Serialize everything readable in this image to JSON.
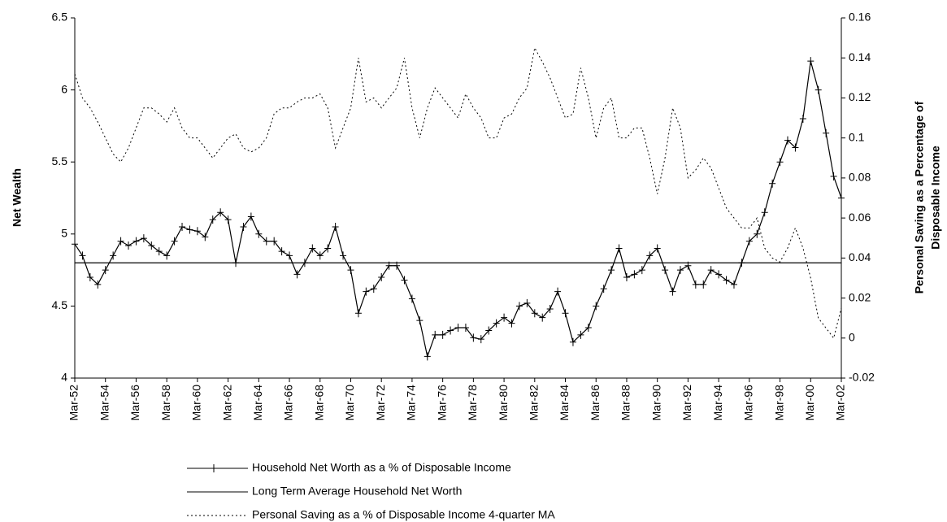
{
  "chart_data": {
    "type": "line",
    "y_label": "Net Wealth",
    "y2_label": [
      "Personal Saving as a Percentage of",
      "Disposable Income"
    ],
    "categories": [
      "Mar-52",
      null,
      null,
      null,
      "Mar-54",
      null,
      null,
      null,
      "Mar-56",
      null,
      null,
      null,
      "Mar-58",
      null,
      null,
      null,
      "Mar-60",
      null,
      null,
      null,
      "Mar-62",
      null,
      null,
      null,
      "Mar-64",
      null,
      null,
      null,
      "Mar-66",
      null,
      null,
      null,
      "Mar-68",
      null,
      null,
      null,
      "Mar-70",
      null,
      null,
      null,
      "Mar-72",
      null,
      null,
      null,
      "Mar-74",
      null,
      null,
      null,
      "Mar-76",
      null,
      null,
      null,
      "Mar-78",
      null,
      null,
      null,
      "Mar-80",
      null,
      null,
      null,
      "Mar-82",
      null,
      null,
      null,
      "Mar-84",
      null,
      null,
      null,
      "Mar-86",
      null,
      null,
      null,
      "Mar-88",
      null,
      null,
      null,
      "Mar-90",
      null,
      null,
      null,
      "Mar-92",
      null,
      null,
      null,
      "Mar-94",
      null,
      null,
      null,
      "Mar-96",
      null,
      null,
      null,
      "Mar-98",
      null,
      null,
      null,
      "Mar-00",
      null,
      null,
      null,
      "Mar-02"
    ],
    "ylim": [
      4,
      6.5
    ],
    "yticks": [
      4,
      4.5,
      5,
      5.5,
      6,
      6.5
    ],
    "y2lim": [
      -0.02,
      0.16
    ],
    "y2ticks": [
      -0.02,
      0,
      0.02,
      0.04,
      0.06,
      0.08,
      0.1,
      0.12,
      0.14,
      0.16
    ],
    "series": [
      {
        "name": "Household Net Worth as a % of Disposable Income",
        "color": "#000000",
        "marker": "plus",
        "dash": false,
        "values": [
          4.93,
          4.85,
          4.7,
          4.65,
          4.75,
          4.85,
          4.95,
          4.92,
          4.95,
          4.97,
          4.92,
          4.88,
          4.85,
          4.95,
          5.05,
          5.03,
          5.02,
          4.98,
          5.1,
          5.15,
          5.1,
          4.8,
          5.05,
          5.12,
          5.0,
          4.95,
          4.95,
          4.88,
          4.85,
          4.72,
          4.8,
          4.9,
          4.85,
          4.9,
          5.05,
          4.85,
          4.75,
          4.45,
          4.6,
          4.62,
          4.7,
          4.78,
          4.78,
          4.68,
          4.55,
          4.4,
          4.15,
          4.3,
          4.3,
          4.33,
          4.35,
          4.35,
          4.28,
          4.27,
          4.33,
          4.38,
          4.42,
          4.38,
          4.5,
          4.52,
          4.45,
          4.42,
          4.48,
          4.6,
          4.45,
          4.25,
          4.3,
          4.35,
          4.5,
          4.62,
          4.75,
          4.9,
          4.7,
          4.72,
          4.75,
          4.85,
          4.9,
          4.75,
          4.6,
          4.75,
          4.78,
          4.65,
          4.65,
          4.75,
          4.72,
          4.68,
          4.65,
          4.8,
          4.95,
          5.0,
          5.15,
          5.35,
          5.5,
          5.65,
          5.6,
          5.8,
          6.2,
          6.0,
          5.7,
          5.4,
          5.25
        ]
      },
      {
        "name": "Long Term Average Household Net Worth",
        "color": "#000000",
        "dash": false,
        "values": [
          4.8,
          4.8,
          4.8,
          4.8,
          4.8,
          4.8,
          4.8,
          4.8,
          4.8,
          4.8,
          4.8,
          4.8,
          4.8,
          4.8,
          4.8,
          4.8,
          4.8,
          4.8,
          4.8,
          4.8,
          4.8,
          4.8,
          4.8,
          4.8,
          4.8,
          4.8,
          4.8,
          4.8,
          4.8,
          4.8,
          4.8,
          4.8,
          4.8,
          4.8,
          4.8,
          4.8,
          4.8,
          4.8,
          4.8,
          4.8,
          4.8,
          4.8,
          4.8,
          4.8,
          4.8,
          4.8,
          4.8,
          4.8,
          4.8,
          4.8,
          4.8,
          4.8,
          4.8,
          4.8,
          4.8,
          4.8,
          4.8,
          4.8,
          4.8,
          4.8,
          4.8,
          4.8,
          4.8,
          4.8,
          4.8,
          4.8,
          4.8,
          4.8,
          4.8,
          4.8,
          4.8,
          4.8,
          4.8,
          4.8,
          4.8,
          4.8,
          4.8,
          4.8,
          4.8,
          4.8,
          4.8,
          4.8,
          4.8,
          4.8,
          4.8,
          4.8,
          4.8,
          4.8,
          4.8,
          4.8,
          4.8,
          4.8,
          4.8,
          4.8,
          4.8,
          4.8,
          4.8,
          4.8,
          4.8,
          4.8,
          4.8
        ]
      },
      {
        "name": "Personal Saving as a % of Disposable Income 4-quarter MA",
        "color": "#000000",
        "dash": true,
        "axis": "y2",
        "values": [
          0.132,
          0.12,
          0.115,
          0.108,
          0.1,
          0.092,
          0.088,
          0.095,
          0.105,
          0.115,
          0.115,
          0.112,
          0.108,
          0.115,
          0.105,
          0.1,
          0.1,
          0.095,
          0.09,
          0.095,
          0.1,
          0.102,
          0.095,
          0.093,
          0.095,
          0.1,
          0.112,
          0.115,
          0.115,
          0.118,
          0.12,
          0.12,
          0.122,
          0.115,
          0.095,
          0.105,
          0.115,
          0.14,
          0.118,
          0.12,
          0.115,
          0.12,
          0.125,
          0.14,
          0.115,
          0.1,
          0.115,
          0.125,
          0.12,
          0.115,
          0.11,
          0.122,
          0.115,
          0.11,
          0.1,
          0.1,
          0.11,
          0.112,
          0.12,
          0.125,
          0.145,
          0.138,
          0.13,
          0.12,
          0.11,
          0.112,
          0.135,
          0.12,
          0.1,
          0.115,
          0.12,
          0.1,
          0.1,
          0.105,
          0.105,
          0.09,
          0.072,
          0.09,
          0.115,
          0.105,
          0.08,
          0.084,
          0.09,
          0.085,
          0.075,
          0.065,
          0.06,
          0.055,
          0.055,
          0.06,
          0.045,
          0.04,
          0.038,
          0.045,
          0.055,
          0.045,
          0.03,
          0.01,
          0.005,
          0.0,
          0.015
        ]
      }
    ]
  }
}
